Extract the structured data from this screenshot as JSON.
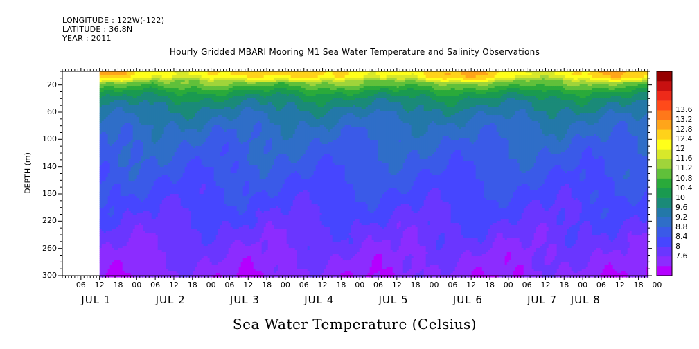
{
  "meta": {
    "longitude": "LONGITUDE : 122W(-122)",
    "latitude": "LATITUDE : 36.8N",
    "year": "YEAR : 2011"
  },
  "chart_data": {
    "type": "heatmap",
    "title": "Hourly Gridded MBARI Mooring M1 Sea Water Temperature and Salinity Observations",
    "xlabel": "",
    "ylabel": "DEPTH (m)",
    "colorbar_title": "Sea Water Temperature (Celsius)",
    "y_range": [
      300,
      0
    ],
    "y_ticks": [
      "20",
      "60",
      "100",
      "140",
      "180",
      "220",
      "260",
      "300"
    ],
    "y_tick_values": [
      20,
      60,
      100,
      140,
      180,
      220,
      260,
      300
    ],
    "x_range_hours": [
      0,
      189
    ],
    "x_hour_ticks": [
      "06",
      "12",
      "18",
      "00",
      "06",
      "12",
      "18",
      "00",
      "06",
      "12",
      "18",
      "00",
      "06",
      "12",
      "18",
      "00",
      "06",
      "12",
      "18",
      "00",
      "06",
      "12",
      "18",
      "00",
      "06",
      "12",
      "18",
      "00",
      "06",
      "12",
      "18",
      "00"
    ],
    "x_hour_tick_values": [
      6,
      12,
      18,
      24,
      30,
      36,
      42,
      48,
      54,
      60,
      66,
      72,
      78,
      84,
      90,
      96,
      102,
      108,
      114,
      120,
      126,
      132,
      138,
      144,
      150,
      156,
      162,
      168,
      174,
      180,
      186,
      192
    ],
    "x_day_labels": [
      {
        "label": "JUL  1",
        "hour": 24
      },
      {
        "label": "JUL  2",
        "hour": 48
      },
      {
        "label": "JUL  3",
        "hour": 72
      },
      {
        "label": "JUL  4",
        "hour": 96
      },
      {
        "label": "JUL  5",
        "hour": 120
      },
      {
        "label": "JUL  6",
        "hour": 144
      },
      {
        "label": "JUL  7",
        "hour": 168
      },
      {
        "label": "JUL  8",
        "hour": 182
      }
    ],
    "data_start_hour": 12,
    "levels": [
      "7.6",
      "8",
      "8.4",
      "8.8",
      "9.2",
      "9.6",
      "10",
      "10.4",
      "10.8",
      "11.2",
      "11.6",
      "12",
      "12.4",
      "12.8",
      "13.2",
      "13.6"
    ],
    "level_values": [
      7.6,
      8,
      8.4,
      8.8,
      9.2,
      9.6,
      10,
      10.4,
      10.8,
      11.2,
      11.6,
      12,
      12.4,
      12.8,
      13.2,
      13.6
    ],
    "colors": [
      "#b400ff",
      "#8c2cff",
      "#6a36ff",
      "#4646ff",
      "#3a5ae8",
      "#2f6ec8",
      "#2378a8",
      "#1a8a78",
      "#1a9a50",
      "#2aaa3a",
      "#60c03a",
      "#a0d43a",
      "#d8e82a",
      "#ffff1a",
      "#ffd21a",
      "#ffa51a",
      "#ff781a",
      "#ff4a1a",
      "#ee2a1a",
      "#c81010",
      "#960000"
    ],
    "profile_depths": [
      5,
      10,
      15,
      20,
      25,
      30,
      40,
      50,
      60,
      70,
      80,
      90,
      100,
      120,
      140,
      160,
      180,
      200,
      220,
      240,
      260,
      280,
      300
    ],
    "profile_temps": [
      12.8,
      12.2,
      11.6,
      11.3,
      11.0,
      10.7,
      10.3,
      10.0,
      9.8,
      9.6,
      9.45,
      9.35,
      9.25,
      9.1,
      8.95,
      8.8,
      8.65,
      8.5,
      8.35,
      8.2,
      8.05,
      7.9,
      7.75
    ]
  }
}
